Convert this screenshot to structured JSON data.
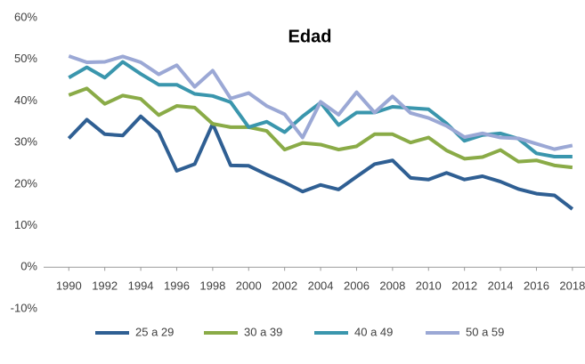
{
  "chart_data": {
    "type": "line",
    "title": "Edad",
    "x": [
      1990,
      1991,
      1992,
      1993,
      1994,
      1995,
      1996,
      1997,
      1998,
      1999,
      2000,
      2001,
      2002,
      2003,
      2004,
      2005,
      2006,
      2007,
      2008,
      2009,
      2010,
      2011,
      2012,
      2013,
      2014,
      2015,
      2016,
      2017,
      2018
    ],
    "xlim": [
      1988.6,
      2018.7
    ],
    "xticks": [
      1990,
      1992,
      1994,
      1996,
      1998,
      2000,
      2002,
      2004,
      2006,
      2008,
      2010,
      2012,
      2014,
      2016,
      2018
    ],
    "ylim": [
      -10,
      60
    ],
    "yticks": [
      {
        "value": -10,
        "label": "-10%"
      },
      {
        "value": 0,
        "label": "0%"
      },
      {
        "value": 10,
        "label": "10%"
      },
      {
        "value": 20,
        "label": "20%"
      },
      {
        "value": 30,
        "label": "30%"
      },
      {
        "value": 40,
        "label": "40%"
      },
      {
        "value": 50,
        "label": "50%"
      },
      {
        "value": 60,
        "label": "60%"
      }
    ],
    "grid": false,
    "legend": "bottom",
    "series": [
      {
        "name": "25 a 29",
        "color": "#2f5f93",
        "values": [
          31,
          35.5,
          32,
          31.7,
          36.3,
          32.5,
          23.2,
          24.8,
          34.5,
          24.5,
          24.4,
          22.3,
          20.4,
          18.2,
          19.8,
          18.7,
          21.8,
          24.8,
          25.7,
          21.5,
          21.1,
          22.7,
          21.1,
          21.9,
          20.6,
          18.8,
          17.7,
          17.3,
          14
        ]
      },
      {
        "name": "30 a 39",
        "color": "#8aab47",
        "values": [
          41.4,
          43,
          39.3,
          41.3,
          40.5,
          36.6,
          38.8,
          38.4,
          34.5,
          33.7,
          33.7,
          32.8,
          28.3,
          29.9,
          29.5,
          28.3,
          29.1,
          32,
          32,
          30,
          31.2,
          28.1,
          26.1,
          26.5,
          28.2,
          25.4,
          25.7,
          24.5,
          24
        ]
      },
      {
        "name": "40 a 49",
        "color": "#3a96ad",
        "values": [
          45.6,
          48.1,
          45.6,
          49.4,
          46.5,
          43.9,
          43.9,
          41.7,
          41.2,
          39.7,
          33.7,
          35,
          32.5,
          36.3,
          39.6,
          34.2,
          37.2,
          37.2,
          38.6,
          38.3,
          38,
          34.6,
          30.4,
          31.8,
          32.2,
          30.9,
          27.4,
          26.6,
          26.6
        ]
      },
      {
        "name": "50 a 59",
        "color": "#9ba8d5",
        "values": [
          50.8,
          49.3,
          49.4,
          50.7,
          49.3,
          46.4,
          48.6,
          43.4,
          47.3,
          40.6,
          41.9,
          38.8,
          36.8,
          31.2,
          39.8,
          36.7,
          42.1,
          37.2,
          41.1,
          37.1,
          35.9,
          34,
          31.3,
          32.2,
          31.2,
          31,
          29.7,
          28.4,
          29.3
        ]
      }
    ]
  }
}
